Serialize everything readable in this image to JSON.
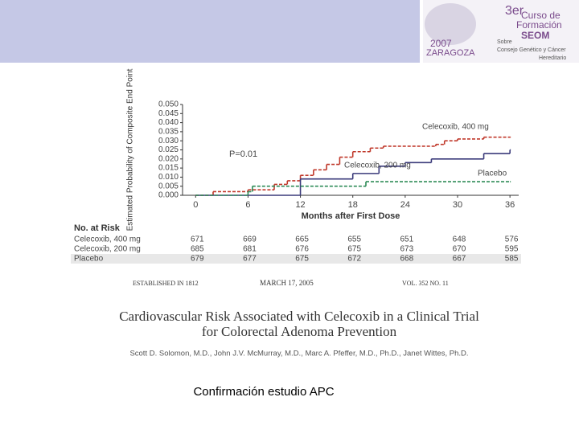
{
  "header": {
    "logo": {
      "edition": "3er",
      "line1": "Curso de",
      "line2": "Formación",
      "line3": "SEOM",
      "year": "2007",
      "city": "ZARAGOZA",
      "topic1": "Sobre",
      "topic2": "Consejo Genético y Cáncer",
      "topic3": "Hereditario"
    }
  },
  "chart_data": {
    "type": "step",
    "y_label": "Estimated Probability of Composite End Point",
    "x_label": "Months after First Dose",
    "annotation": "P=0.01",
    "xlim": [
      -1.5,
      37
    ],
    "xticks": [
      0,
      6,
      12,
      18,
      24,
      30,
      36
    ],
    "ylim": [
      0,
      0.05
    ],
    "yticks": [
      {
        "value": 0,
        "label": "0.000"
      },
      0.005,
      {
        "value": 0.01,
        "label": "0.010"
      },
      0.015,
      {
        "value": 0.02,
        "label": "0.020"
      },
      0.025,
      {
        "value": 0.03,
        "label": "0.030"
      },
      0.035,
      {
        "value": 0.04,
        "label": "0.040"
      },
      0.045,
      {
        "value": 0.05,
        "label": "0.050"
      }
    ],
    "series": [
      {
        "name": "Celecoxib, 400 mg",
        "color": "#c0392b",
        "x": [
          0,
          2,
          6,
          9,
          10.5,
          12,
          13.5,
          15,
          16.5,
          18,
          20,
          21.5,
          27.5,
          28.5,
          30,
          33,
          36
        ],
        "values": [
          0,
          0.002,
          0.003,
          0.006,
          0.008,
          0.011,
          0.014,
          0.017,
          0.021,
          0.024,
          0.026,
          0.027,
          0.028,
          0.03,
          0.031,
          0.032,
          0.032
        ]
      },
      {
        "name": "Celecoxib, 200 mg",
        "color": "#3a3a7a",
        "x": [
          0,
          12,
          18,
          21,
          24,
          27,
          33,
          36
        ],
        "values": [
          0,
          0.009,
          0.012,
          0.016,
          0.018,
          0.02,
          0.023,
          0.025
        ]
      },
      {
        "name": "Placebo",
        "color": "#2e8b57",
        "x": [
          0,
          6,
          6.5,
          19.5,
          36
        ],
        "values": [
          0,
          0.002,
          0.005,
          0.0075,
          0.0075
        ]
      }
    ],
    "risk_table": {
      "title": "No. at Risk",
      "rows": [
        [
          671,
          669,
          665,
          655,
          651,
          648,
          576
        ],
        [
          685,
          681,
          676,
          675,
          673,
          670,
          595
        ],
        [
          679,
          677,
          675,
          672,
          668,
          667,
          585
        ]
      ]
    }
  },
  "journal": {
    "established": "ESTABLISHED IN 1812",
    "date": "MARCH 17, 2005",
    "volume": "VOL. 352 NO. 11",
    "title1": "Cardiovascular Risk Associated with Celecoxib in a Clinical Trial",
    "title2": "for Colorectal Adenoma Prevention",
    "authors": "Scott D. Solomon, M.D., John J.V. McMurray, M.D., Marc A. Pfeffer, M.D., Ph.D., Janet Wittes, Ph.D."
  },
  "caption": "Confirmación estudio APC"
}
